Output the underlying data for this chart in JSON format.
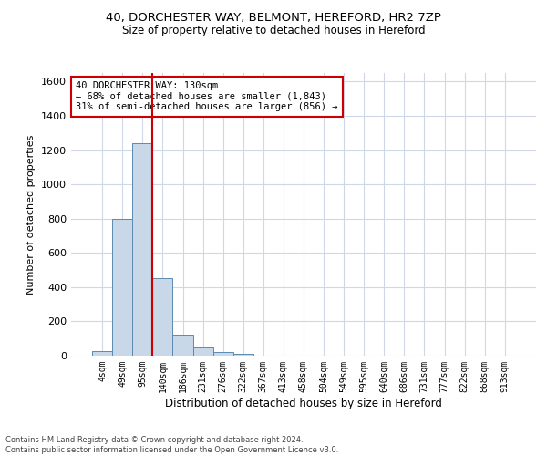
{
  "title_line1": "40, DORCHESTER WAY, BELMONT, HEREFORD, HR2 7ZP",
  "title_line2": "Size of property relative to detached houses in Hereford",
  "xlabel": "Distribution of detached houses by size in Hereford",
  "ylabel": "Number of detached properties",
  "categories": [
    "4sqm",
    "49sqm",
    "95sqm",
    "140sqm",
    "186sqm",
    "231sqm",
    "276sqm",
    "322sqm",
    "367sqm",
    "413sqm",
    "458sqm",
    "504sqm",
    "549sqm",
    "595sqm",
    "640sqm",
    "686sqm",
    "731sqm",
    "777sqm",
    "822sqm",
    "868sqm",
    "913sqm"
  ],
  "bar_values": [
    25,
    800,
    1240,
    455,
    120,
    50,
    20,
    12,
    0,
    0,
    0,
    0,
    0,
    0,
    0,
    0,
    0,
    0,
    0,
    0,
    0
  ],
  "bar_color": "#c8d8e8",
  "bar_edge_color": "#5a8ab0",
  "grid_color": "#d0d8e8",
  "background_color": "#ffffff",
  "ylim": [
    0,
    1650
  ],
  "yticks": [
    0,
    200,
    400,
    600,
    800,
    1000,
    1200,
    1400,
    1600
  ],
  "vline_x": 2.5,
  "vline_color": "#cc0000",
  "annotation_text": "40 DORCHESTER WAY: 130sqm\n← 68% of detached houses are smaller (1,843)\n31% of semi-detached houses are larger (856) →",
  "annotation_box_color": "#ffffff",
  "annotation_box_edge_color": "#cc0000",
  "footer_line1": "Contains HM Land Registry data © Crown copyright and database right 2024.",
  "footer_line2": "Contains public sector information licensed under the Open Government Licence v3.0."
}
